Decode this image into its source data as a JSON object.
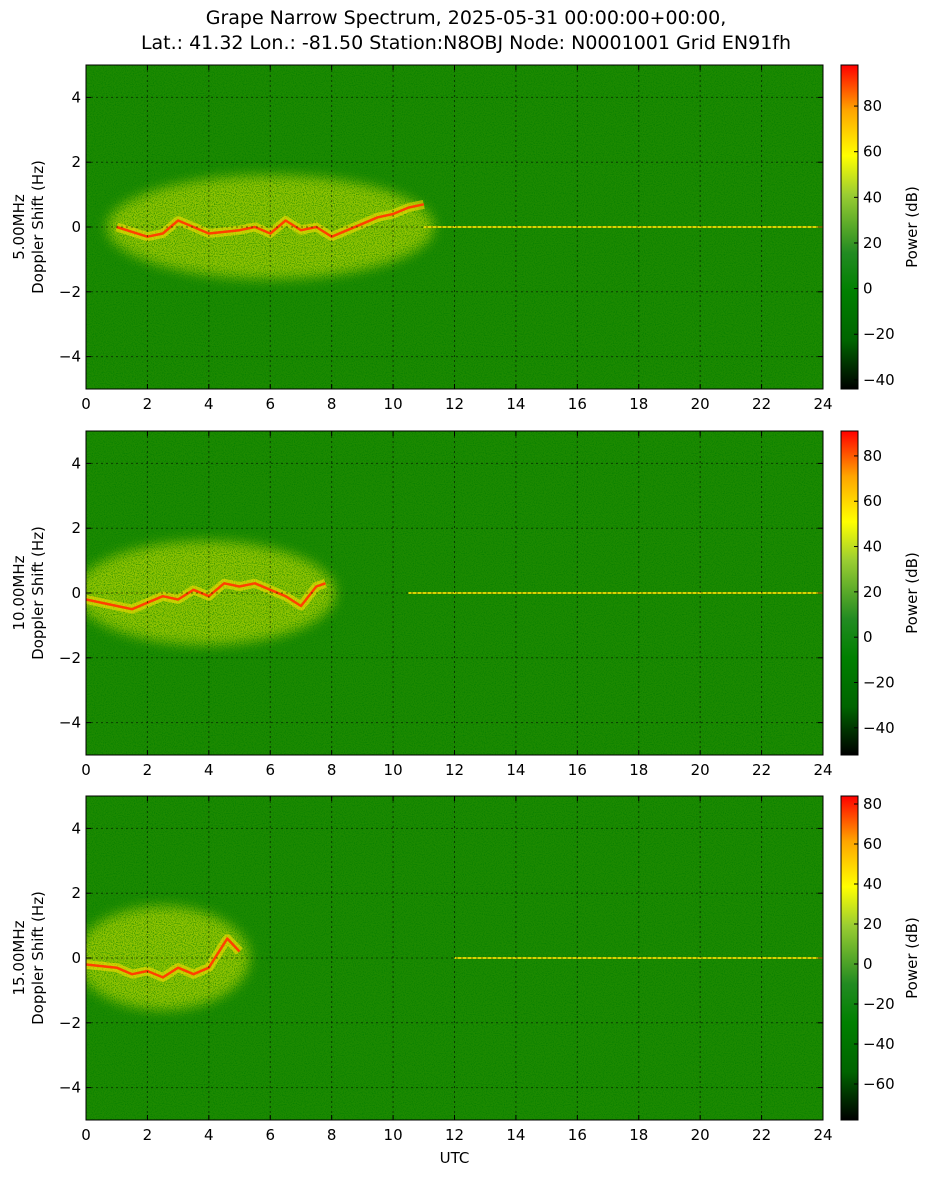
{
  "chart_data": {
    "type": "heatmap",
    "title_line1": "Grape Narrow Spectrum, 2025-05-31 00:00:00+00:00,",
    "title_line2": "Lat.: 41.32 Lon.: -81.50 Station:N8OBJ Node: N0001001 Grid EN91fh",
    "xlabel": "UTC",
    "xlim": [
      0,
      24
    ],
    "xticks": [
      "0",
      "2",
      "4",
      "6",
      "8",
      "10",
      "12",
      "14",
      "16",
      "18",
      "20",
      "22",
      "24"
    ],
    "grid": true,
    "colormap": [
      "#000000",
      "#006400",
      "#008000",
      "#228b22",
      "#9acd32",
      "#ffff00",
      "#ffa500",
      "#ff0000"
    ],
    "panels": [
      {
        "ylabel_line1": "5.00MHz",
        "ylabel_line2": "Doppler Shift (Hz)",
        "ylim": [
          -5,
          5
        ],
        "yticks": [
          "−4",
          "−2",
          "0",
          "2",
          "4"
        ],
        "colorbar_label": "Power (dB)",
        "colorbar_range": [
          -44,
          98
        ],
        "colorbar_ticks": [
          "80",
          "60",
          "40",
          "20",
          "0",
          "−20",
          "−40"
        ],
        "bright_trace": [
          [
            1.0,
            0.0
          ],
          [
            2.0,
            -0.3
          ],
          [
            2.5,
            -0.2
          ],
          [
            3.0,
            0.2
          ],
          [
            3.5,
            0.0
          ],
          [
            4.0,
            -0.2
          ],
          [
            5.0,
            -0.1
          ],
          [
            5.5,
            0.0
          ],
          [
            6.0,
            -0.2
          ],
          [
            6.5,
            0.2
          ],
          [
            7.0,
            -0.1
          ],
          [
            7.5,
            0.0
          ],
          [
            8.0,
            -0.3
          ],
          [
            9.0,
            0.1
          ],
          [
            9.5,
            0.3
          ],
          [
            10.0,
            0.4
          ],
          [
            10.5,
            0.6
          ],
          [
            11.0,
            0.7
          ]
        ],
        "carrier_line": [
          [
            11.0,
            0.0
          ],
          [
            24.0,
            0.0
          ]
        ]
      },
      {
        "ylabel_line1": "10.00MHz",
        "ylabel_line2": "Doppler Shift (Hz)",
        "ylim": [
          -5,
          5
        ],
        "yticks": [
          "−4",
          "−2",
          "0",
          "2",
          "4"
        ],
        "colorbar_label": "Power (dB)",
        "colorbar_range": [
          -52,
          91
        ],
        "colorbar_ticks": [
          "80",
          "60",
          "40",
          "20",
          "0",
          "−20",
          "−40"
        ],
        "bright_trace": [
          [
            0.0,
            -0.2
          ],
          [
            1.5,
            -0.5
          ],
          [
            2.0,
            -0.3
          ],
          [
            2.5,
            -0.1
          ],
          [
            3.0,
            -0.2
          ],
          [
            3.5,
            0.1
          ],
          [
            4.0,
            -0.1
          ],
          [
            4.5,
            0.3
          ],
          [
            5.0,
            0.2
          ],
          [
            5.5,
            0.3
          ],
          [
            6.0,
            0.1
          ],
          [
            6.5,
            -0.1
          ],
          [
            7.0,
            -0.4
          ],
          [
            7.5,
            0.2
          ],
          [
            7.8,
            0.3
          ]
        ],
        "carrier_line": [
          [
            10.5,
            0.0
          ],
          [
            24.0,
            0.0
          ]
        ]
      },
      {
        "ylabel_line1": "15.00MHz",
        "ylabel_line2": "Doppler Shift (Hz)",
        "ylim": [
          -5,
          5
        ],
        "yticks": [
          "−4",
          "−2",
          "0",
          "2",
          "4"
        ],
        "colorbar_label": "Power (dB)",
        "colorbar_range": [
          -78,
          84
        ],
        "colorbar_ticks": [
          "80",
          "60",
          "40",
          "20",
          "0",
          "−20",
          "−40",
          "−60"
        ],
        "bright_trace": [
          [
            0.0,
            -0.2
          ],
          [
            1.0,
            -0.3
          ],
          [
            1.5,
            -0.5
          ],
          [
            2.0,
            -0.4
          ],
          [
            2.5,
            -0.6
          ],
          [
            3.0,
            -0.3
          ],
          [
            3.5,
            -0.5
          ],
          [
            4.0,
            -0.3
          ],
          [
            4.6,
            0.6
          ],
          [
            5.0,
            0.2
          ]
        ],
        "carrier_line": [
          [
            12.0,
            0.0
          ],
          [
            24.0,
            0.0
          ]
        ]
      }
    ]
  }
}
